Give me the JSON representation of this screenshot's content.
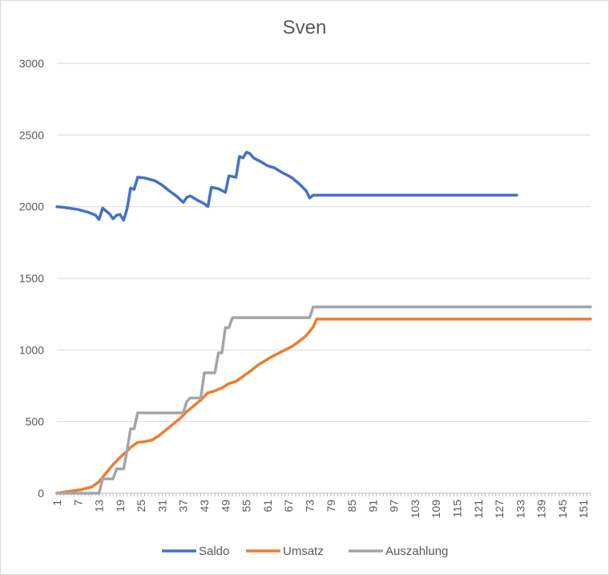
{
  "chart_data": {
    "type": "line",
    "title": "Sven",
    "xlabel": "",
    "ylabel": "",
    "ylim": [
      0,
      3000
    ],
    "yticks": [
      0,
      500,
      1000,
      1500,
      2000,
      2500,
      3000
    ],
    "x_range": [
      1,
      153
    ],
    "xticks": [
      1,
      7,
      13,
      19,
      25,
      31,
      37,
      43,
      49,
      55,
      61,
      67,
      73,
      79,
      85,
      91,
      97,
      103,
      109,
      115,
      121,
      127,
      133,
      139,
      145,
      151
    ],
    "grid": true,
    "legend_position": "bottom",
    "series": [
      {
        "name": "Saldo",
        "color": "#4472C4",
        "points": [
          [
            1,
            2000
          ],
          [
            3,
            1995
          ],
          [
            7,
            1980
          ],
          [
            10,
            1960
          ],
          [
            12,
            1940
          ],
          [
            13,
            1910
          ],
          [
            14,
            1990
          ],
          [
            16,
            1950
          ],
          [
            17,
            1915
          ],
          [
            18,
            1940
          ],
          [
            19,
            1945
          ],
          [
            20,
            1905
          ],
          [
            21,
            1985
          ],
          [
            22,
            2130
          ],
          [
            23,
            2120
          ],
          [
            24,
            2205
          ],
          [
            26,
            2200
          ],
          [
            29,
            2180
          ],
          [
            31,
            2150
          ],
          [
            33,
            2110
          ],
          [
            35,
            2075
          ],
          [
            37,
            2030
          ],
          [
            38,
            2065
          ],
          [
            39,
            2075
          ],
          [
            41,
            2045
          ],
          [
            43,
            2020
          ],
          [
            44,
            2000
          ],
          [
            45,
            2135
          ],
          [
            47,
            2125
          ],
          [
            49,
            2100
          ],
          [
            50,
            2215
          ],
          [
            52,
            2205
          ],
          [
            53,
            2350
          ],
          [
            54,
            2340
          ],
          [
            55,
            2380
          ],
          [
            56,
            2370
          ],
          [
            57,
            2340
          ],
          [
            59,
            2315
          ],
          [
            61,
            2285
          ],
          [
            63,
            2270
          ],
          [
            65,
            2240
          ],
          [
            67,
            2215
          ],
          [
            68,
            2200
          ],
          [
            70,
            2160
          ],
          [
            71,
            2135
          ],
          [
            72,
            2110
          ],
          [
            73,
            2060
          ],
          [
            74,
            2080
          ],
          [
            132,
            2080
          ]
        ]
      },
      {
        "name": "Umsatz",
        "color": "#ED7D31",
        "points": [
          [
            1,
            0
          ],
          [
            5,
            15
          ],
          [
            8,
            25
          ],
          [
            11,
            45
          ],
          [
            13,
            80
          ],
          [
            15,
            140
          ],
          [
            17,
            200
          ],
          [
            19,
            250
          ],
          [
            21,
            295
          ],
          [
            22,
            320
          ],
          [
            24,
            355
          ],
          [
            26,
            360
          ],
          [
            28,
            370
          ],
          [
            30,
            400
          ],
          [
            32,
            440
          ],
          [
            34,
            480
          ],
          [
            36,
            520
          ],
          [
            38,
            570
          ],
          [
            40,
            610
          ],
          [
            42,
            650
          ],
          [
            44,
            700
          ],
          [
            46,
            715
          ],
          [
            48,
            735
          ],
          [
            50,
            765
          ],
          [
            52,
            780
          ],
          [
            54,
            815
          ],
          [
            56,
            850
          ],
          [
            58,
            890
          ],
          [
            60,
            920
          ],
          [
            62,
            950
          ],
          [
            64,
            975
          ],
          [
            66,
            1000
          ],
          [
            68,
            1025
          ],
          [
            70,
            1060
          ],
          [
            72,
            1100
          ],
          [
            74,
            1160
          ],
          [
            75,
            1215
          ],
          [
            153,
            1215
          ]
        ]
      },
      {
        "name": "Auszahlung",
        "color": "#A5A5A5",
        "points": [
          [
            1,
            0
          ],
          [
            13,
            0
          ],
          [
            14,
            100
          ],
          [
            17,
            100
          ],
          [
            18,
            170
          ],
          [
            20,
            170
          ],
          [
            21,
            300
          ],
          [
            22,
            450
          ],
          [
            23,
            450
          ],
          [
            24,
            560
          ],
          [
            37,
            560
          ],
          [
            38,
            640
          ],
          [
            39,
            665
          ],
          [
            42,
            665
          ],
          [
            43,
            840
          ],
          [
            46,
            840
          ],
          [
            47,
            980
          ],
          [
            48,
            980
          ],
          [
            49,
            1155
          ],
          [
            50,
            1155
          ],
          [
            51,
            1225
          ],
          [
            73,
            1225
          ],
          [
            74,
            1300
          ],
          [
            153,
            1300
          ]
        ]
      }
    ]
  }
}
